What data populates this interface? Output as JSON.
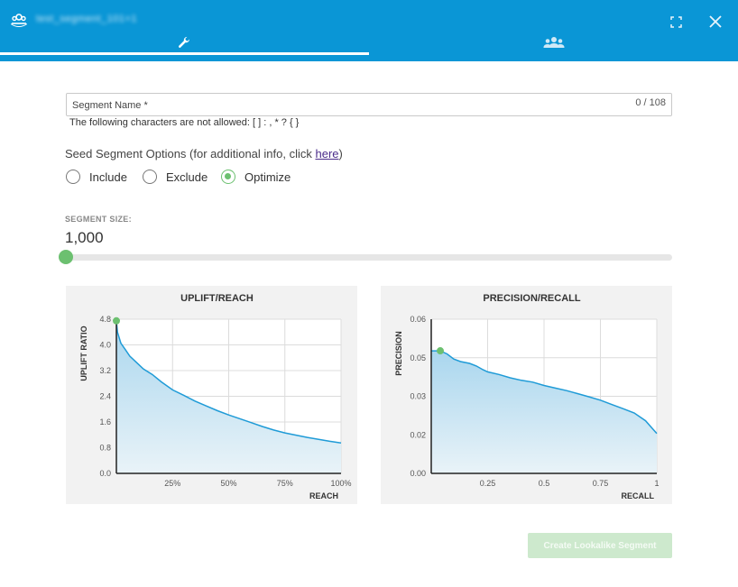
{
  "colors": {
    "header": "#0a96d6",
    "accent_green": "#6cc070",
    "chart_line": "#1f9bd7",
    "button_bg": "#cde9cd"
  },
  "header": {
    "title": "test_segment_101+1",
    "tabs": [
      {
        "icon": "wrench-icon",
        "active": true
      },
      {
        "icon": "users-group-icon",
        "active": false
      }
    ],
    "icons": [
      "segment-app-icon",
      "expand-icon",
      "close-icon"
    ]
  },
  "form": {
    "segment_name_placeholder": "Segment Name *",
    "segment_name_counter": "0 / 108",
    "disallowed_hint": "The following characters are not allowed: [ ] : , * ? { }",
    "seed_options_prefix": "Seed Segment Options (for additional info, click ",
    "seed_options_link": "here",
    "seed_options_suffix": ")",
    "options": [
      {
        "label": "Include",
        "selected": false
      },
      {
        "label": "Exclude",
        "selected": false
      },
      {
        "label": "Optimize",
        "selected": true
      }
    ]
  },
  "segment_size": {
    "label": "SEGMENT SIZE:",
    "value_text": "1,000",
    "slider_fraction": 0.0
  },
  "chart_data": [
    {
      "type": "area",
      "title": "UPLIFT/REACH",
      "xlabel": "REACH",
      "ylabel": "UPLIFT RATIO",
      "xlim": [
        0,
        100
      ],
      "ylim": [
        0,
        4.8
      ],
      "xticks": [
        "25%",
        "50%",
        "75%",
        "100%"
      ],
      "xtick_values": [
        25,
        50,
        75,
        100
      ],
      "yticks": [
        "0.0",
        "0.8",
        "1.6",
        "2.4",
        "3.2",
        "4.0",
        "4.8"
      ],
      "ytick_values": [
        0,
        0.8,
        1.6,
        2.4,
        3.2,
        4.0,
        4.8
      ],
      "grid": true,
      "x": [
        0,
        0.5,
        2,
        4,
        6,
        9,
        12,
        16,
        20,
        25,
        30,
        35,
        40,
        45,
        50,
        55,
        60,
        65,
        70,
        75,
        80,
        85,
        90,
        95,
        100
      ],
      "y": [
        4.75,
        4.4,
        4.05,
        3.85,
        3.65,
        3.45,
        3.25,
        3.08,
        2.85,
        2.6,
        2.43,
        2.25,
        2.1,
        1.95,
        1.82,
        1.7,
        1.58,
        1.46,
        1.35,
        1.26,
        1.19,
        1.12,
        1.06,
        1.0,
        0.95
      ],
      "marker": {
        "x": 0,
        "y": 4.75
      }
    },
    {
      "type": "area",
      "title": "PRECISION/RECALL",
      "xlabel": "RECALL",
      "ylabel": "PRECISION",
      "xlim": [
        0,
        1
      ],
      "ylim": [
        0,
        0.06
      ],
      "xticks": [
        "0.25",
        "0.5",
        "0.75",
        "1"
      ],
      "xtick_values": [
        0.25,
        0.5,
        0.75,
        1
      ],
      "yticks": [
        "0.00",
        "0.02",
        "0.03",
        "0.05",
        "0.06"
      ],
      "ytick_values": [
        0,
        0.015,
        0.03,
        0.045,
        0.06
      ],
      "grid": true,
      "x": [
        0,
        0.04,
        0.07,
        0.1,
        0.13,
        0.17,
        0.2,
        0.23,
        0.25,
        0.3,
        0.35,
        0.4,
        0.45,
        0.5,
        0.55,
        0.6,
        0.65,
        0.7,
        0.75,
        0.8,
        0.85,
        0.9,
        0.95,
        0.98,
        1
      ],
      "y": [
        0.0477,
        0.0477,
        0.0465,
        0.0445,
        0.0435,
        0.0428,
        0.0418,
        0.0403,
        0.0395,
        0.0385,
        0.0372,
        0.0362,
        0.0355,
        0.0342,
        0.0332,
        0.0322,
        0.031,
        0.0298,
        0.0285,
        0.0268,
        0.0252,
        0.0235,
        0.0205,
        0.0175,
        0.0155
      ],
      "marker": {
        "x": 0.04,
        "y": 0.0477
      }
    }
  ],
  "create_button": "Create Lookalike Segment"
}
